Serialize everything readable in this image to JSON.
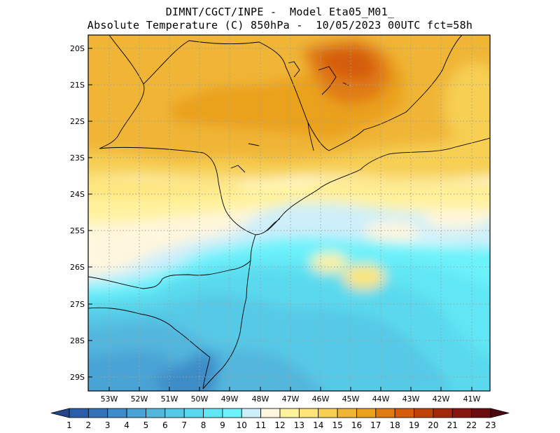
{
  "header": {
    "line1": "DIMNT/CGCT/INPE -  Model Eta05_M01_",
    "line2": "Absolute Temperature (C) 850hPa -  10/05/2023 00UTC fct=58h"
  },
  "map": {
    "lat_labels": [
      "20S",
      "21S",
      "22S",
      "23S",
      "24S",
      "25S",
      "26S",
      "27S",
      "28S",
      "29S"
    ],
    "lon_labels": [
      "53W",
      "52W",
      "51W",
      "50W",
      "49W",
      "48W",
      "47W",
      "46W",
      "45W",
      "44W",
      "43W",
      "42W",
      "41W"
    ],
    "gridlines": "dotted"
  },
  "colorbar": {
    "labels": [
      "1",
      "2",
      "3",
      "4",
      "5",
      "6",
      "7",
      "8",
      "9",
      "10",
      "11",
      "12",
      "13",
      "14",
      "15",
      "16",
      "17",
      "18",
      "19",
      "20",
      "21",
      "22",
      "23"
    ],
    "colors": [
      "#23468f",
      "#2b5ea9",
      "#3374b8",
      "#3e8cc8",
      "#4aa3d4",
      "#52b6dd",
      "#56c9e6",
      "#5ad9ee",
      "#61e6f4",
      "#6cf2fb",
      "#cdeffa",
      "#fff6dd",
      "#fff29d",
      "#fde57a",
      "#f6cf53",
      "#f0b535",
      "#eaa11c",
      "#e07a12",
      "#d45c0a",
      "#bf4208",
      "#a3290a",
      "#871510",
      "#6b0b12",
      "#4d0710"
    ]
  }
}
